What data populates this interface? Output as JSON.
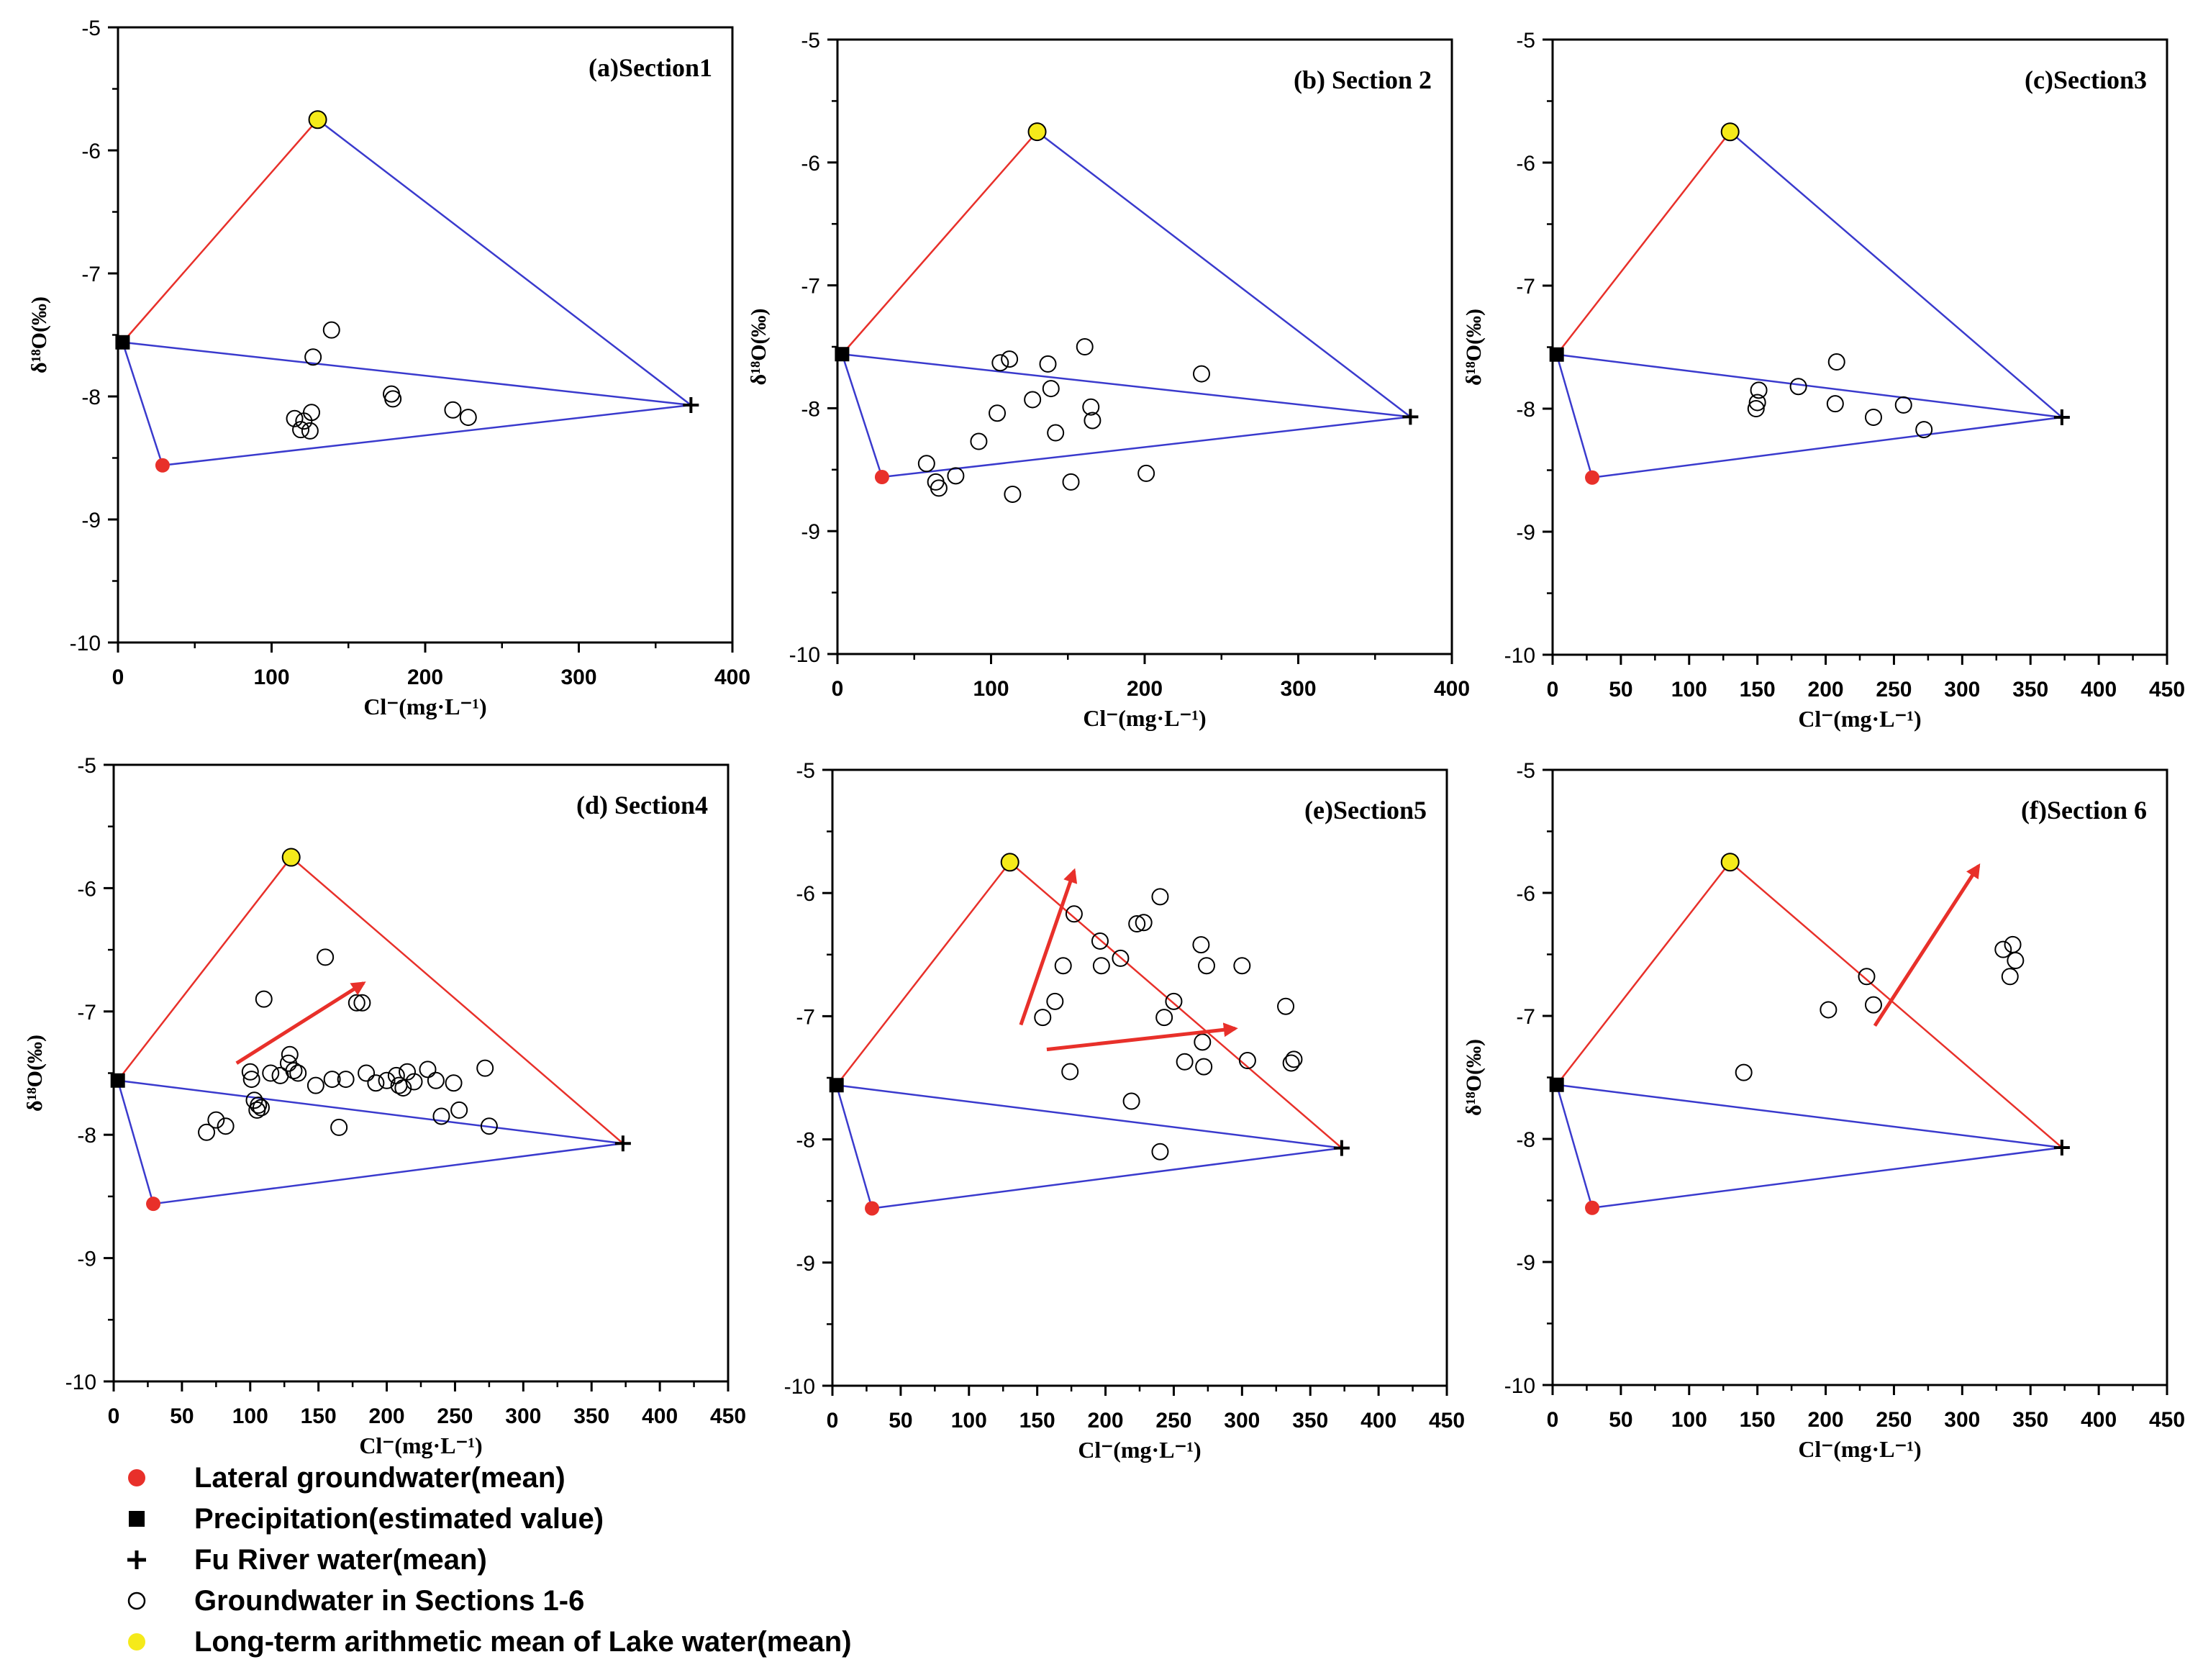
{
  "chart_data": [
    {
      "type": "scatter",
      "title": "(a)Section1",
      "xlabel": "Cl⁻(mg·L⁻¹)",
      "ylabel": "δ¹⁸O(‰)",
      "xlim": [
        0,
        400
      ],
      "ylim": [
        -10,
        -5
      ],
      "xticks": [
        0,
        100,
        200,
        300,
        400
      ],
      "yticks": [
        -10,
        -9,
        -8,
        -7,
        -6,
        -5
      ],
      "endmembers": {
        "lake": [
          130,
          -5.75
        ],
        "precipitation": [
          3,
          -7.56
        ],
        "river": [
          373,
          -8.07
        ],
        "lateral": [
          29,
          -8.56
        ]
      },
      "triangle_colors": [
        "#e8302a",
        "#3a3acd",
        "#3a3acd"
      ],
      "groundwater": [
        [
          115,
          -8.18
        ],
        [
          119,
          -8.27
        ],
        [
          121,
          -8.2
        ],
        [
          125,
          -8.28
        ],
        [
          127,
          -7.68
        ],
        [
          126,
          -8.13
        ],
        [
          139,
          -7.46
        ],
        [
          178,
          -7.98
        ],
        [
          179,
          -8.02
        ],
        [
          218,
          -8.11
        ],
        [
          228,
          -8.17
        ]
      ],
      "arrows": []
    },
    {
      "type": "scatter",
      "title": "(b) Section 2",
      "xlabel": "Cl⁻(mg·L⁻¹)",
      "ylabel": "δ¹⁸O(‰)",
      "xlim": [
        0,
        400
      ],
      "ylim": [
        -10,
        -5
      ],
      "xticks": [
        0,
        100,
        200,
        300,
        400
      ],
      "yticks": [
        -10,
        -9,
        -8,
        -7,
        -6,
        -5
      ],
      "endmembers": {
        "lake": [
          130,
          -5.75
        ],
        "precipitation": [
          3,
          -7.56
        ],
        "river": [
          373,
          -8.07
        ],
        "lateral": [
          29,
          -8.56
        ]
      },
      "triangle_colors": [
        "#e8302a",
        "#3a3acd",
        "#3a3acd"
      ],
      "groundwater": [
        [
          58,
          -8.45
        ],
        [
          64,
          -8.6
        ],
        [
          66,
          -8.65
        ],
        [
          77,
          -8.55
        ],
        [
          92,
          -8.27
        ],
        [
          104,
          -8.04
        ],
        [
          106,
          -7.63
        ],
        [
          112,
          -7.6
        ],
        [
          114,
          -8.7
        ],
        [
          127,
          -7.93
        ],
        [
          137,
          -7.64
        ],
        [
          139,
          -7.84
        ],
        [
          142,
          -8.2
        ],
        [
          152,
          -8.6
        ],
        [
          161,
          -7.5
        ],
        [
          165,
          -7.99
        ],
        [
          166,
          -8.1
        ],
        [
          201,
          -8.53
        ],
        [
          237,
          -7.72
        ]
      ],
      "arrows": []
    },
    {
      "type": "scatter",
      "title": "(c)Section3",
      "xlabel": "Cl⁻(mg·L⁻¹)",
      "ylabel": "δ¹⁸O(‰)",
      "xlim": [
        0,
        450
      ],
      "ylim": [
        -10,
        -5
      ],
      "xticks": [
        0,
        50,
        100,
        150,
        200,
        250,
        300,
        350,
        400,
        450
      ],
      "yticks": [
        -10,
        -9,
        -8,
        -7,
        -6,
        -5
      ],
      "endmembers": {
        "lake": [
          130,
          -5.75
        ],
        "precipitation": [
          3,
          -7.56
        ],
        "river": [
          373,
          -8.07
        ],
        "lateral": [
          29,
          -8.56
        ]
      },
      "triangle_colors": [
        "#e8302a",
        "#3a3acd",
        "#3a3acd"
      ],
      "groundwater": [
        [
          149,
          -8.0
        ],
        [
          150,
          -7.95
        ],
        [
          151,
          -7.85
        ],
        [
          180,
          -7.82
        ],
        [
          207,
          -7.96
        ],
        [
          208,
          -7.62
        ],
        [
          235,
          -8.07
        ],
        [
          257,
          -7.97
        ],
        [
          272,
          -8.17
        ]
      ],
      "arrows": []
    },
    {
      "type": "scatter",
      "title": "(d) Section4",
      "xlabel": "Cl⁻(mg·L⁻¹)",
      "ylabel": "δ¹⁸O(‰)",
      "xlim": [
        0,
        450
      ],
      "ylim": [
        -10,
        -5
      ],
      "xticks": [
        0,
        50,
        100,
        150,
        200,
        250,
        300,
        350,
        400,
        450
      ],
      "yticks": [
        -10,
        -9,
        -8,
        -7,
        -6,
        -5
      ],
      "endmembers": {
        "lake": [
          130,
          -5.75
        ],
        "precipitation": [
          3,
          -7.56
        ],
        "river": [
          373,
          -8.07
        ],
        "lateral": [
          29,
          -8.56
        ]
      },
      "triangle_colors": [
        "#e8302a",
        "#e8302a",
        "#3a3acd"
      ],
      "groundwater": [
        [
          68,
          -7.98
        ],
        [
          75,
          -7.88
        ],
        [
          82,
          -7.93
        ],
        [
          100,
          -7.49
        ],
        [
          101,
          -7.55
        ],
        [
          103,
          -7.72
        ],
        [
          105,
          -7.8
        ],
        [
          106,
          -7.76
        ],
        [
          108,
          -7.78
        ],
        [
          110,
          -6.9
        ],
        [
          115,
          -7.5
        ],
        [
          122,
          -7.52
        ],
        [
          128,
          -7.42
        ],
        [
          129,
          -7.35
        ],
        [
          132,
          -7.48
        ],
        [
          135,
          -7.5
        ],
        [
          148,
          -7.6
        ],
        [
          155,
          -6.56
        ],
        [
          160,
          -7.55
        ],
        [
          165,
          -7.94
        ],
        [
          170,
          -7.55
        ],
        [
          178,
          -6.93
        ],
        [
          182,
          -6.93
        ],
        [
          185,
          -7.5
        ],
        [
          192,
          -7.58
        ],
        [
          200,
          -7.56
        ],
        [
          207,
          -7.52
        ],
        [
          209,
          -7.6
        ],
        [
          212,
          -7.62
        ],
        [
          215,
          -7.49
        ],
        [
          220,
          -7.57
        ],
        [
          230,
          -7.47
        ],
        [
          236,
          -7.56
        ],
        [
          240,
          -7.85
        ],
        [
          249,
          -7.58
        ],
        [
          253,
          -7.8
        ],
        [
          272,
          -7.46
        ],
        [
          275,
          -7.93
        ]
      ],
      "arrows": [
        [
          [
            90,
            -7.42
          ],
          [
            183,
            -6.77
          ]
        ]
      ]
    },
    {
      "type": "scatter",
      "title": "(e)Section5",
      "xlabel": "Cl⁻(mg·L⁻¹)",
      "ylabel": "",
      "xlim": [
        0,
        450
      ],
      "ylim": [
        -10,
        -5
      ],
      "xticks": [
        0,
        50,
        100,
        150,
        200,
        250,
        300,
        350,
        400,
        450
      ],
      "yticks": [
        -10,
        -9,
        -8,
        -7,
        -6,
        -5
      ],
      "endmembers": {
        "lake": [
          130,
          -5.75
        ],
        "precipitation": [
          3,
          -7.56
        ],
        "river": [
          373,
          -8.07
        ],
        "lateral": [
          29,
          -8.56
        ]
      },
      "triangle_colors": [
        "#e8302a",
        "#e8302a",
        "#3a3acd"
      ],
      "groundwater": [
        [
          154,
          -7.01
        ],
        [
          163,
          -6.88
        ],
        [
          169,
          -6.59
        ],
        [
          174,
          -7.45
        ],
        [
          177,
          -6.17
        ],
        [
          196,
          -6.39
        ],
        [
          197,
          -6.59
        ],
        [
          211,
          -6.53
        ],
        [
          219,
          -7.69
        ],
        [
          223,
          -6.25
        ],
        [
          228,
          -6.24
        ],
        [
          240,
          -6.03
        ],
        [
          243,
          -7.01
        ],
        [
          250,
          -6.88
        ],
        [
          258,
          -7.37
        ],
        [
          270,
          -6.42
        ],
        [
          271,
          -7.21
        ],
        [
          272,
          -7.41
        ],
        [
          274,
          -6.59
        ],
        [
          240,
          -8.1
        ],
        [
          300,
          -6.59
        ],
        [
          304,
          -7.36
        ],
        [
          332,
          -6.92
        ],
        [
          336,
          -7.38
        ],
        [
          338,
          -7.35
        ]
      ],
      "arrows": [
        [
          [
            138,
            -7.07
          ],
          [
            177,
            -5.82
          ]
        ],
        [
          [
            157,
            -7.27
          ],
          [
            295,
            -7.1
          ]
        ]
      ]
    },
    {
      "type": "scatter",
      "title": "(f)Section 6",
      "xlabel": "Cl⁻(mg·L⁻¹)",
      "ylabel": "δ¹⁸O(‰)",
      "xlim": [
        0,
        450
      ],
      "ylim": [
        -10,
        -5
      ],
      "xticks": [
        0,
        50,
        100,
        150,
        200,
        250,
        300,
        350,
        400,
        450
      ],
      "yticks": [
        -10,
        -9,
        -8,
        -7,
        -6,
        -5
      ],
      "endmembers": {
        "lake": [
          130,
          -5.75
        ],
        "precipitation": [
          3,
          -7.56
        ],
        "river": [
          373,
          -8.07
        ],
        "lateral": [
          29,
          -8.56
        ]
      },
      "triangle_colors": [
        "#e8302a",
        "#e8302a",
        "#3a3acd"
      ],
      "groundwater": [
        [
          140,
          -7.46
        ],
        [
          202,
          -6.95
        ],
        [
          230,
          -6.68
        ],
        [
          235,
          -6.91
        ],
        [
          330,
          -6.46
        ],
        [
          335,
          -6.68
        ],
        [
          337,
          -6.42
        ],
        [
          339,
          -6.55
        ]
      ],
      "arrows": [
        [
          [
            236,
            -7.08
          ],
          [
            312,
            -5.78
          ]
        ]
      ]
    }
  ],
  "legend": [
    {
      "marker": "lateral",
      "label": "Lateral groundwater(mean)"
    },
    {
      "marker": "precipitation",
      "label": "Precipitation(estimated value)"
    },
    {
      "marker": "river",
      "label": "Fu River water(mean)"
    },
    {
      "marker": "groundwater",
      "label": "Groundwater in Sections 1-6"
    },
    {
      "marker": "lake",
      "label": "Long-term arithmetic mean of Lake water(mean)"
    }
  ],
  "colors": {
    "lateral": "#e8302a",
    "lake": "#f5ea1a",
    "red_line": "#e8302a",
    "blue_line": "#3a3acd",
    "arrow": "#e8302a"
  }
}
